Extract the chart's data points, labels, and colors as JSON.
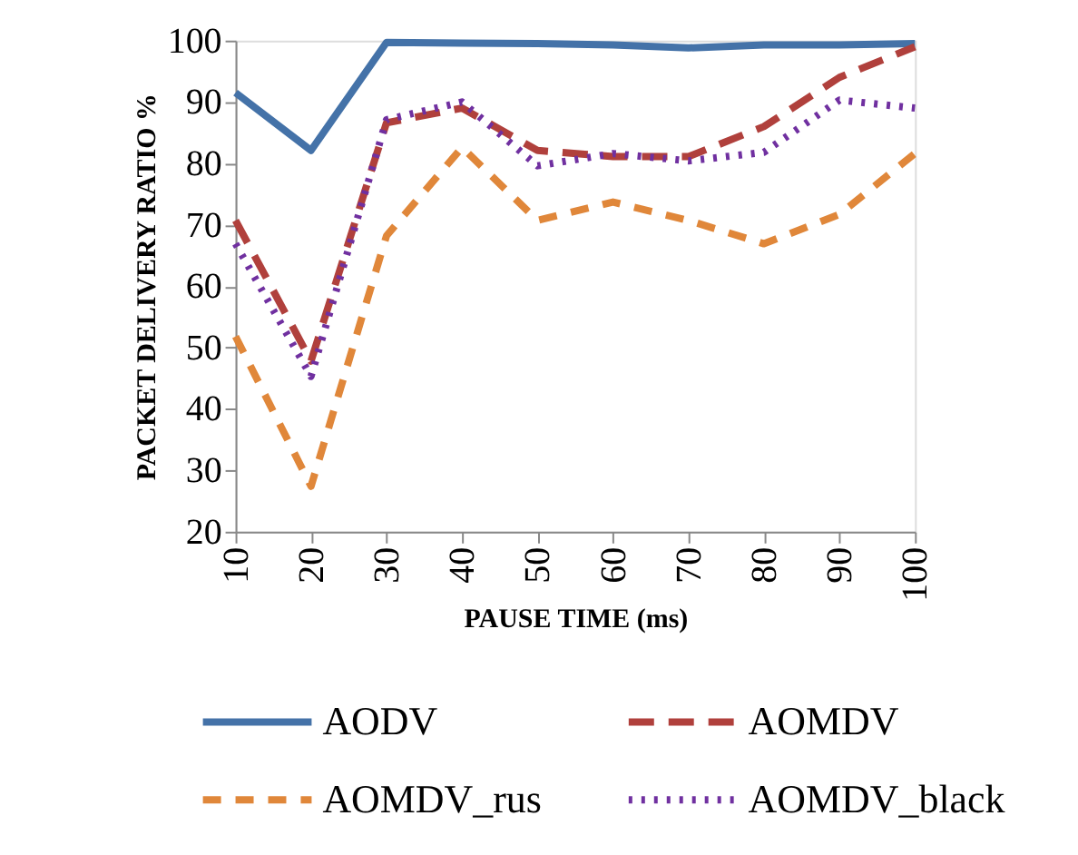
{
  "chart_data": {
    "type": "line",
    "xlabel": "PAUSE  TIME  (ms)",
    "ylabel": "PACKET DELIVERY RATIO %",
    "categories": [
      "10",
      "20",
      "30",
      "40",
      "50",
      "60",
      "70",
      "80",
      "90",
      "100"
    ],
    "ylim": [
      20,
      100
    ],
    "yticks": [
      20,
      30,
      40,
      50,
      60,
      70,
      80,
      90,
      100
    ],
    "grid": false,
    "legend": "bottom",
    "series": [
      {
        "name": "AODV",
        "color": "#4472a8",
        "line_style": "solid",
        "values": [
          91.5,
          82.1,
          99.7,
          99.6,
          99.5,
          99.3,
          98.8,
          99.3,
          99.3,
          99.5
        ]
      },
      {
        "name": "AOMDV",
        "color": "#b0403c",
        "line_style": "dashed",
        "values": [
          70.7,
          47.8,
          86.6,
          89,
          82.1,
          81.1,
          81.1,
          86,
          94,
          99
        ]
      },
      {
        "name": "AOMDV_rus",
        "color": "#e0873a",
        "line_style": "dashed",
        "values": [
          51.8,
          27.4,
          68.2,
          82.6,
          70.7,
          73.7,
          70.7,
          66.9,
          71.7,
          81.6
        ]
      },
      {
        "name": "AOMDV_black",
        "color": "#7030a0",
        "line_style": "dotted",
        "values": [
          66.9,
          45.3,
          87.1,
          90,
          79.6,
          81.6,
          80.4,
          81.8,
          90.3,
          89
        ]
      }
    ]
  }
}
